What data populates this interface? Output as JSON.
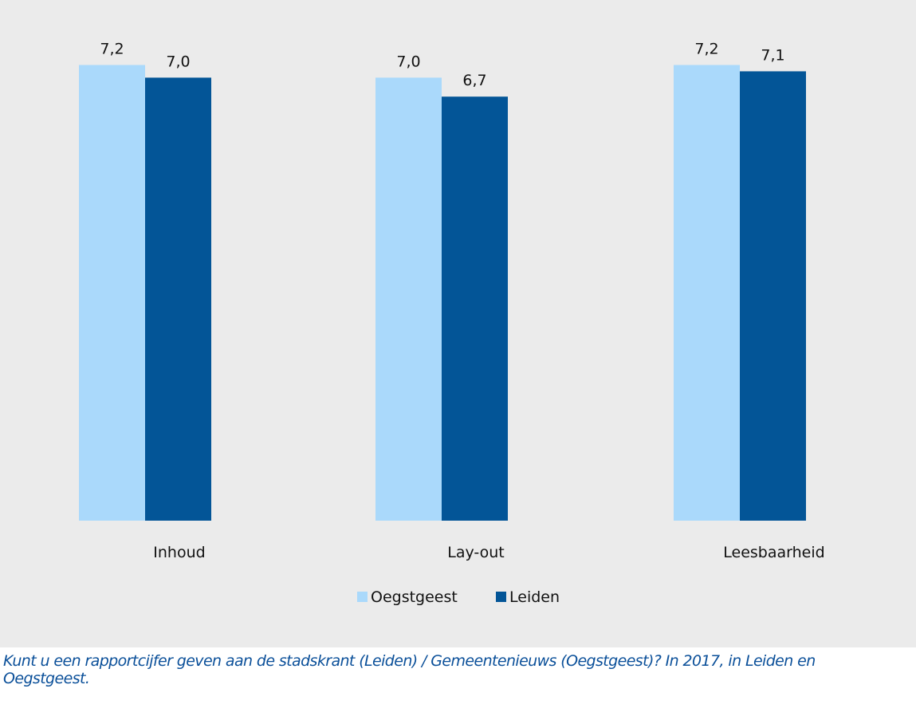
{
  "chart_data": {
    "type": "bar",
    "categories": [
      "Inhoud",
      "Lay-out",
      "Leesbaarheid"
    ],
    "series": [
      {
        "name": "Oegstgeest",
        "values": [
          7.2,
          7.0,
          7.2
        ],
        "labels": [
          "7,2",
          "7,0",
          "7,2"
        ],
        "color": "#aad9fb"
      },
      {
        "name": "Leiden",
        "values": [
          7.0,
          6.7,
          7.1
        ],
        "labels": [
          "7,0",
          "6,7",
          "7,1"
        ],
        "color": "#035597"
      }
    ],
    "ylim": [
      0,
      8.0
    ],
    "grid": false,
    "legend_position": "bottom",
    "background": "#ebebeb"
  },
  "caption": "Kunt u een rapportcijfer geven aan de stadskrant (Leiden) / Gemeentenieuws (Oegstgeest)? In 2017, in Leiden en Oegstgeest."
}
